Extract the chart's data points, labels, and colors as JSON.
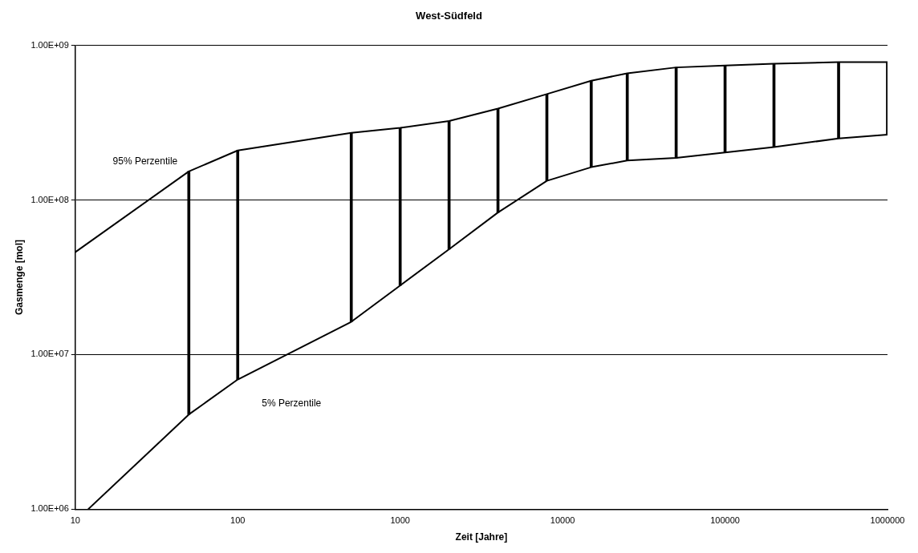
{
  "chart_data": {
    "type": "line",
    "title": "West-Südfeld",
    "xlabel": "Zeit [Jahre]",
    "ylabel": "Gasmenge [mol]",
    "log": "xy",
    "grid": "y",
    "legend": false,
    "marker": "none",
    "line_style": "solid",
    "xlim": [
      10,
      1000000
    ],
    "xticks": [
      10,
      100,
      1000,
      10000,
      100000,
      1000000
    ],
    "ylim": [
      1000000,
      1000000000
    ],
    "yticks": [
      {
        "value": 1000000,
        "label": "1.00E+06"
      },
      {
        "value": 10000000,
        "label": "1.00E+07"
      },
      {
        "value": 100000000,
        "label": "1.00E+08"
      },
      {
        "value": 1000000000,
        "label": "1.00E+09"
      }
    ],
    "series": [
      {
        "name": "95% Perzentile",
        "color": "#000000",
        "x": [
          10,
          50,
          100,
          500,
          1000,
          2000,
          4000,
          8000,
          15000,
          25000,
          50000,
          100000,
          200000,
          500000,
          1000000
        ],
        "values": [
          46000000,
          153000000,
          209000000,
          272000000,
          293000000,
          324000000,
          390000000,
          484000000,
          590000000,
          660000000,
          720000000,
          740000000,
          760000000,
          780000000,
          780000000
        ]
      },
      {
        "name": "5% Perzentile",
        "color": "#000000",
        "x": [
          12,
          50,
          100,
          500,
          1000,
          2000,
          4000,
          8000,
          15000,
          25000,
          50000,
          100000,
          200000,
          500000,
          1000000
        ],
        "values": [
          1000000,
          4100000,
          6900000,
          16300000,
          28000000,
          48000000,
          83000000,
          133000000,
          163000000,
          180000000,
          187000000,
          203000000,
          220000000,
          250000000,
          265000000
        ]
      },
      {
        "type": "bar",
        "color": "#000000",
        "x": [
          50,
          100,
          500,
          1000,
          2000,
          4000,
          8000,
          15000,
          25000,
          50000,
          100000,
          200000,
          500000,
          1000000
        ],
        "base": [
          4100000,
          6900000,
          16300000,
          28000000,
          48000000,
          83000000,
          133000000,
          163000000,
          180000000,
          187000000,
          203000000,
          220000000,
          250000000,
          265000000
        ],
        "values": [
          148900000,
          202100000,
          255700000,
          265000000,
          276000000,
          307000000,
          351000000,
          427000000,
          480000000,
          533000000,
          537000000,
          540000000,
          530000000,
          515000000
        ]
      }
    ]
  }
}
